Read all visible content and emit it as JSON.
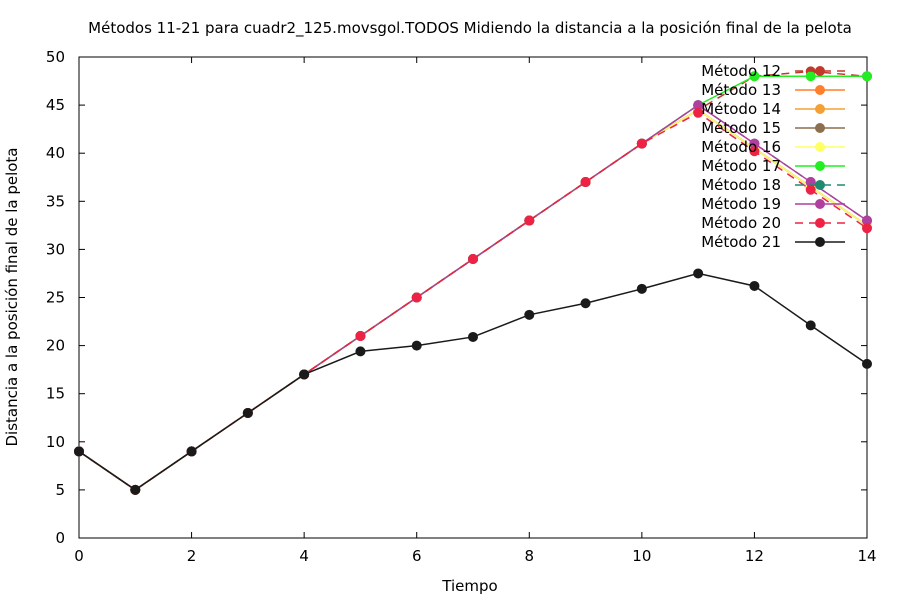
{
  "chart_data": {
    "type": "line",
    "title": "Métodos 11-21 para cuadr2_125.movsgol.TODOS Midiendo la distancia a la posición final de la pelota",
    "xlabel": "Tiempo",
    "ylabel": "Distancia a la posición final de la pelota",
    "xlim": [
      0,
      14
    ],
    "ylim": [
      0,
      50
    ],
    "x_ticks": [
      0,
      2,
      4,
      6,
      8,
      10,
      12,
      14
    ],
    "y_ticks": [
      0,
      5,
      10,
      15,
      20,
      25,
      30,
      35,
      40,
      45,
      50
    ],
    "grid": false,
    "legend_position": "top-right",
    "x": [
      0,
      1,
      2,
      3,
      4,
      5,
      6,
      7,
      8,
      9,
      10,
      11,
      12,
      13,
      14
    ],
    "series": [
      {
        "name": "Método 12",
        "color": "#c0392b",
        "dash": "8,6",
        "values": [
          9,
          5,
          9,
          13,
          17,
          21,
          25,
          29,
          33,
          37,
          41,
          44.5,
          48,
          48.5,
          48
        ]
      },
      {
        "name": "Método 13",
        "color": "#ff7f2a",
        "dash": "",
        "values": [
          9,
          5,
          9,
          13,
          17,
          21,
          25,
          29,
          33,
          37,
          41,
          44.5,
          40.5,
          36.5,
          32.5
        ]
      },
      {
        "name": "Método 14",
        "color": "#f5a033",
        "dash": "",
        "values": [
          9,
          5,
          9,
          13,
          17,
          21,
          25,
          29,
          33,
          37,
          41,
          44.5,
          40.5,
          36.5,
          32.5
        ]
      },
      {
        "name": "Método 15",
        "color": "#8b6f4e",
        "dash": "",
        "values": [
          9,
          5,
          9,
          13,
          17,
          21,
          25,
          29,
          33,
          37,
          41,
          44.5,
          40.5,
          36.5,
          32.5
        ]
      },
      {
        "name": "Método 16",
        "color": "#ffff66",
        "dash": "",
        "values": [
          9,
          5,
          9,
          13,
          17,
          21,
          25,
          29,
          33,
          37,
          41,
          44.5,
          40.5,
          36.5,
          32.5
        ]
      },
      {
        "name": "Método 17",
        "color": "#22ee22",
        "dash": "",
        "values": [
          9,
          5,
          9,
          13,
          17,
          21,
          25,
          29,
          33,
          37,
          41,
          45,
          48,
          48,
          48
        ]
      },
      {
        "name": "Método 18",
        "color": "#1f8a70",
        "dash": "8,6",
        "values": [
          9,
          5,
          9,
          13,
          17,
          21,
          25,
          29,
          33,
          37,
          41,
          45,
          41,
          37,
          33
        ]
      },
      {
        "name": "Método 19",
        "color": "#b03fa0",
        "dash": "",
        "values": [
          9,
          5,
          9,
          13,
          17,
          21,
          25,
          29,
          33,
          37,
          41,
          45,
          41,
          37,
          33
        ]
      },
      {
        "name": "Método 20",
        "color": "#ee2244",
        "dash": "8,6",
        "values": [
          9,
          5,
          9,
          13,
          17,
          21,
          25,
          29,
          33,
          37,
          41,
          44.2,
          40.2,
          36.2,
          32.2
        ]
      },
      {
        "name": "Método 21",
        "color": "#1a1a1a",
        "dash": "",
        "values": [
          9,
          5,
          9,
          13,
          17,
          19.4,
          20,
          20.9,
          23.2,
          24.4,
          25.9,
          27.5,
          26.2,
          22.1,
          18.1
        ]
      }
    ]
  }
}
